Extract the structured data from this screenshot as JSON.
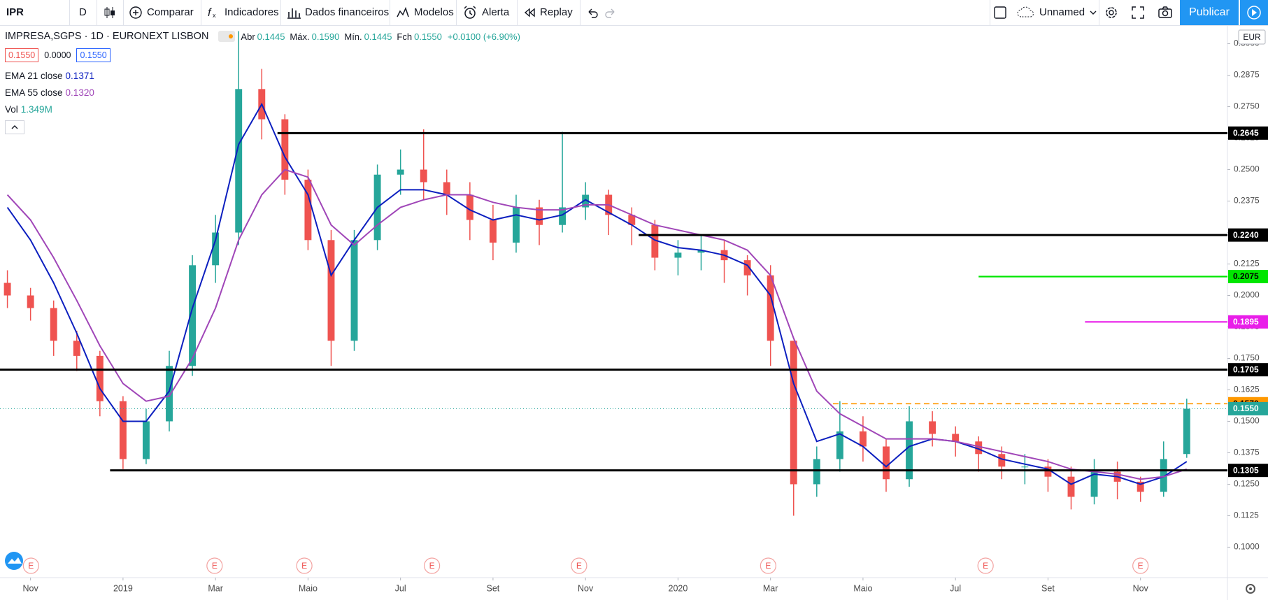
{
  "toolbar": {
    "symbol": "IPR",
    "interval": "D",
    "items": [
      "Comparar",
      "Indicadores",
      "Dados financeiros",
      "Modelos",
      "Alerta",
      "Replay"
    ],
    "layout_name": "Unnamed",
    "publish": "Publicar"
  },
  "legend": {
    "title": "IMPRESA,SGPS · 1D · EURONEXT LISBON",
    "ohlc": [
      {
        "label": "Abr",
        "value": "0.1445"
      },
      {
        "label": "Máx.",
        "value": "0.1590"
      },
      {
        "label": "Mín.",
        "value": "0.1445"
      },
      {
        "label": "Fch",
        "value": "0.1550"
      }
    ],
    "change": "+0.0100 (+6.90%)",
    "price_boxes": [
      "0.1550",
      "0.0000",
      "0.1550"
    ],
    "volume_name": "Vol",
    "volume_value": "1.349M"
  },
  "currency": "EUR",
  "chart_data": {
    "type": "candlestick",
    "x": [
      -2.5,
      -2,
      -1.5,
      -1,
      -0.5,
      0,
      0.5,
      1,
      1.5,
      2,
      2.5,
      3,
      3.5,
      4,
      4.5,
      5,
      5.5,
      6,
      6.5,
      7,
      7.5,
      8,
      8.5,
      9,
      9.5,
      10,
      10.5,
      11,
      11.5,
      12,
      12.5,
      13,
      13.5,
      14,
      14.5,
      15,
      15.5,
      16,
      16.5,
      17,
      17.5,
      18,
      18.5,
      19,
      19.5,
      20,
      20.5,
      21,
      21.5,
      22,
      22.5,
      23
    ],
    "open": [
      0.205,
      0.2,
      0.195,
      0.182,
      0.176,
      0.158,
      0.135,
      0.15,
      0.172,
      0.212,
      0.225,
      0.282,
      0.27,
      0.246,
      0.222,
      0.182,
      0.222,
      0.248,
      0.25,
      0.245,
      0.24,
      0.23,
      0.221,
      0.235,
      0.228,
      0.235,
      0.24,
      0.232,
      0.228,
      0.215,
      0.217,
      0.218,
      0.214,
      0.208,
      0.182,
      0.125,
      0.135,
      0.146,
      0.14,
      0.127,
      0.15,
      0.145,
      0.142,
      0.137,
      0.132,
      0.132,
      0.128,
      0.12,
      0.13,
      0.126,
      0.122,
      0.137
    ],
    "high": [
      0.21,
      0.203,
      0.198,
      0.186,
      0.178,
      0.16,
      0.155,
      0.178,
      0.216,
      0.232,
      0.305,
      0.29,
      0.272,
      0.25,
      0.226,
      0.226,
      0.252,
      0.258,
      0.266,
      0.25,
      0.245,
      0.236,
      0.24,
      0.238,
      0.265,
      0.245,
      0.242,
      0.235,
      0.23,
      0.222,
      0.224,
      0.222,
      0.216,
      0.212,
      0.182,
      0.14,
      0.158,
      0.152,
      0.143,
      0.156,
      0.154,
      0.148,
      0.144,
      0.14,
      0.137,
      0.135,
      0.132,
      0.135,
      0.134,
      0.128,
      0.142,
      0.159
    ],
    "low": [
      0.195,
      0.19,
      0.176,
      0.17,
      0.152,
      0.131,
      0.133,
      0.146,
      0.168,
      0.205,
      0.22,
      0.262,
      0.24,
      0.218,
      0.172,
      0.178,
      0.218,
      0.24,
      0.238,
      0.232,
      0.222,
      0.214,
      0.217,
      0.22,
      0.225,
      0.23,
      0.224,
      0.22,
      0.21,
      0.208,
      0.21,
      0.205,
      0.2,
      0.172,
      0.1125,
      0.12,
      0.13,
      0.134,
      0.122,
      0.124,
      0.14,
      0.136,
      0.13,
      0.127,
      0.125,
      0.122,
      0.115,
      0.117,
      0.119,
      0.118,
      0.12,
      0.1355
    ],
    "close": [
      0.2,
      0.195,
      0.182,
      0.176,
      0.158,
      0.135,
      0.15,
      0.172,
      0.212,
      0.225,
      0.282,
      0.27,
      0.246,
      0.222,
      0.182,
      0.222,
      0.248,
      0.25,
      0.245,
      0.24,
      0.23,
      0.221,
      0.235,
      0.228,
      0.235,
      0.24,
      0.232,
      0.228,
      0.215,
      0.217,
      0.218,
      0.214,
      0.208,
      0.182,
      0.125,
      0.135,
      0.146,
      0.14,
      0.127,
      0.15,
      0.145,
      0.142,
      0.137,
      0.132,
      0.132,
      0.128,
      0.12,
      0.13,
      0.126,
      0.122,
      0.135,
      0.155
    ],
    "up_color": "#26a69a",
    "down_color": "#ef5350",
    "series": [
      {
        "name": "EMA 21 close",
        "last": "0.1371",
        "color": "#0c1fbf",
        "values": [
          0.235,
          0.222,
          0.205,
          0.185,
          0.163,
          0.15,
          0.15,
          0.162,
          0.195,
          0.222,
          0.26,
          0.276,
          0.255,
          0.24,
          0.208,
          0.222,
          0.235,
          0.242,
          0.242,
          0.24,
          0.234,
          0.23,
          0.232,
          0.23,
          0.232,
          0.238,
          0.233,
          0.228,
          0.222,
          0.219,
          0.218,
          0.216,
          0.212,
          0.2,
          0.165,
          0.142,
          0.145,
          0.14,
          0.132,
          0.14,
          0.143,
          0.142,
          0.139,
          0.135,
          0.133,
          0.131,
          0.125,
          0.129,
          0.128,
          0.125,
          0.128,
          0.134
        ]
      },
      {
        "name": "EMA 55 close",
        "last": "0.1320",
        "color": "#a046b8",
        "values": [
          0.24,
          0.23,
          0.215,
          0.198,
          0.18,
          0.165,
          0.158,
          0.16,
          0.175,
          0.195,
          0.222,
          0.24,
          0.25,
          0.247,
          0.228,
          0.22,
          0.228,
          0.235,
          0.238,
          0.24,
          0.24,
          0.237,
          0.235,
          0.234,
          0.234,
          0.236,
          0.236,
          0.232,
          0.228,
          0.226,
          0.224,
          0.222,
          0.218,
          0.208,
          0.183,
          0.162,
          0.153,
          0.148,
          0.143,
          0.143,
          0.143,
          0.142,
          0.14,
          0.138,
          0.136,
          0.134,
          0.131,
          0.13,
          0.129,
          0.127,
          0.128,
          0.131
        ]
      }
    ],
    "levels": [
      {
        "value": 0.2645,
        "label": "0.2645",
        "color": "#000000",
        "text_color": "#ffffff",
        "style": "solid",
        "start": 3.34
      },
      {
        "value": 0.224,
        "label": "0.2240",
        "color": "#000000",
        "text_color": "#ffffff",
        "style": "solid",
        "start": 11.15
      },
      {
        "value": 0.2075,
        "label": "0.2075",
        "color": "#00e600",
        "text_color": "#000000",
        "style": "solid",
        "start": 18.5
      },
      {
        "value": 0.1895,
        "label": "0.1895",
        "color": "#e91ee9",
        "text_color": "#ffffff",
        "style": "solid",
        "start": 20.8
      },
      {
        "value": 0.1705,
        "label": "0.1705",
        "color": "#000000",
        "text_color": "#ffffff",
        "style": "solid"
      },
      {
        "value": 0.157,
        "label": "0.1570",
        "color": "#ff9800",
        "text_color": "#000000",
        "style": "dashed",
        "start": 15.35
      },
      {
        "value": 0.155,
        "label": "0.1550",
        "color": "#26a69a",
        "text_color": "#ffffff",
        "style": "dotted"
      },
      {
        "value": 0.1305,
        "label": "0.1305",
        "color": "#000000",
        "text_color": "#ffffff",
        "style": "solid",
        "start": -0.28
      }
    ],
    "events": [
      {
        "x": -1.99,
        "label": "E"
      },
      {
        "x": 1.98,
        "label": "E"
      },
      {
        "x": 3.92,
        "label": "E"
      },
      {
        "x": 6.68,
        "label": "E"
      },
      {
        "x": 9.86,
        "label": "E"
      },
      {
        "x": 13.95,
        "label": "E"
      },
      {
        "x": 18.65,
        "label": "E"
      },
      {
        "x": 22.0,
        "label": "E"
      }
    ],
    "xlim": [
      -2.66,
      23.88
    ],
    "xticks": [
      {
        "value": -2,
        "label": "Nov"
      },
      {
        "value": 0,
        "label": "2019"
      },
      {
        "value": 2,
        "label": "Mar"
      },
      {
        "value": 4,
        "label": "Maio"
      },
      {
        "value": 6,
        "label": "Jul"
      },
      {
        "value": 8,
        "label": "Set"
      },
      {
        "value": 10,
        "label": "Nov"
      },
      {
        "value": 12,
        "label": "2020"
      },
      {
        "value": 14,
        "label": "Mar"
      },
      {
        "value": 16,
        "label": "Maio"
      },
      {
        "value": 18,
        "label": "Jul"
      },
      {
        "value": 20,
        "label": "Set"
      },
      {
        "value": 22,
        "label": "Nov"
      }
    ],
    "ylim": [
      0.0879,
      0.3071
    ],
    "yticks": [
      {
        "value": 0.3,
        "label": "0.3000"
      },
      {
        "value": 0.2875,
        "label": "0.2875"
      },
      {
        "value": 0.275,
        "label": "0.2750"
      },
      {
        "value": 0.2625,
        "label": "0.2625"
      },
      {
        "value": 0.25,
        "label": "0.2500"
      },
      {
        "value": 0.2375,
        "label": "0.2375"
      },
      {
        "value": 0.225,
        "label": "0.2250"
      },
      {
        "value": 0.2125,
        "label": "0.2125"
      },
      {
        "value": 0.2,
        "label": "0.2000"
      },
      {
        "value": 0.1875,
        "label": "0.1875"
      },
      {
        "value": 0.175,
        "label": "0.1750"
      },
      {
        "value": 0.1625,
        "label": "0.1625"
      },
      {
        "value": 0.15,
        "label": "0.1500"
      },
      {
        "value": 0.1375,
        "label": "0.1375"
      },
      {
        "value": 0.125,
        "label": "0.1250"
      },
      {
        "value": 0.1125,
        "label": "0.1125"
      },
      {
        "value": 0.1,
        "label": "0.1000"
      }
    ],
    "grid": false
  }
}
